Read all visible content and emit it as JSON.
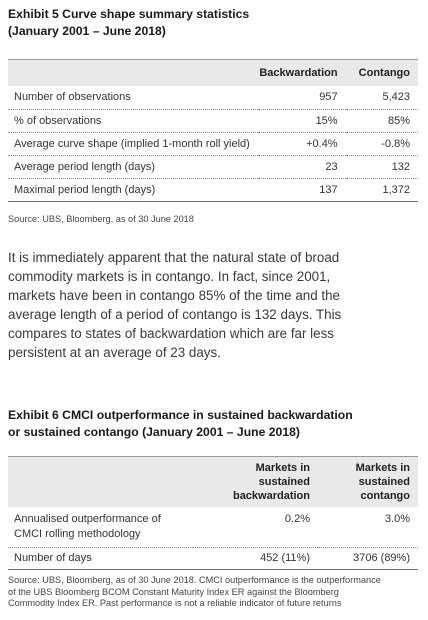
{
  "exhibit5": {
    "title_line1": "Exhibit 5 Curve shape summary statistics",
    "title_line2": "(January 2001 – June 2018)",
    "columns": [
      "",
      "Backwardation",
      "Contango"
    ],
    "rows": [
      {
        "label": "Number of observations",
        "backwardation": "957",
        "contango": "5,423"
      },
      {
        "label": "% of observations",
        "backwardation": "15%",
        "contango": "85%"
      },
      {
        "label": "Average curve shape (implied 1-month roll yield)",
        "backwardation": "+0.4%",
        "contango": "-0.8%"
      },
      {
        "label": "Average period length (days)",
        "backwardation": "23",
        "contango": "132"
      },
      {
        "label": "Maximal period length (days)",
        "backwardation": "137",
        "contango": "1,372"
      }
    ],
    "source": "Source: UBS, Bloomberg, as of 30 June 2018"
  },
  "paragraph": {
    "lines": [
      "It is immediately apparent that the natural state of broad",
      "commodity markets is in contango.  In fact, since 2001,",
      "markets have been in contango 85% of the time and the",
      "average length of a period of contango is 132 days.  This",
      "compares to states of backwardation which are far less",
      "persistent at an average of 23 days."
    ]
  },
  "exhibit6": {
    "title_line1": "Exhibit 6 CMCI outperformance in sustained backwardation",
    "title_line2": "or sustained contango (January 2001 – June 2018)",
    "col1_line1": "Markets in",
    "col1_line2": "sustained backwardation",
    "col2_line1": "Markets in",
    "col2_line2": "sustained contango",
    "rows": [
      {
        "label_line1": "Annualised outperformance of",
        "label_line2": "CMCI rolling methodology",
        "backwardation": "0.2%",
        "contango": "3.0%"
      },
      {
        "label_line1": "Number of days",
        "label_line2": "",
        "backwardation": "452 (11%)",
        "contango": "3706 (89%)"
      }
    ],
    "source_lines": [
      "Source: UBS, Bloomberg, as of 30 June 2018. CMCI outperformance is the outperformance",
      "of the UBS Bloomberg BCOM Constant Maturity Index ER against the Bloomberg",
      "Commodity Index ER. Past performance is not a reliable indicator of future returns"
    ]
  }
}
